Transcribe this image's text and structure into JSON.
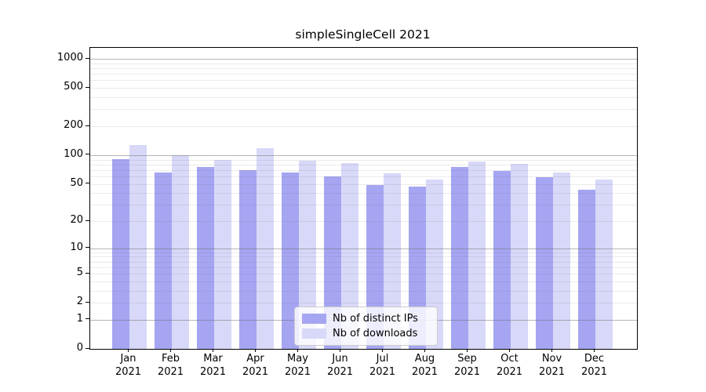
{
  "chart_data": {
    "type": "bar",
    "title": "simpleSingleCell 2021",
    "categories": [
      {
        "month": "Jan",
        "year": "2021"
      },
      {
        "month": "Feb",
        "year": "2021"
      },
      {
        "month": "Mar",
        "year": "2021"
      },
      {
        "month": "Apr",
        "year": "2021"
      },
      {
        "month": "May",
        "year": "2021"
      },
      {
        "month": "Jun",
        "year": "2021"
      },
      {
        "month": "Jul",
        "year": "2021"
      },
      {
        "month": "Aug",
        "year": "2021"
      },
      {
        "month": "Sep",
        "year": "2021"
      },
      {
        "month": "Oct",
        "year": "2021"
      },
      {
        "month": "Nov",
        "year": "2021"
      },
      {
        "month": "Dec",
        "year": "2021"
      }
    ],
    "series": [
      {
        "key": "distinct-ips",
        "name": "Nb of distinct IPs",
        "color": "#a5a5f2",
        "values": [
          91,
          66,
          75,
          70,
          66,
          60,
          49,
          47,
          75,
          68,
          59,
          43
        ]
      },
      {
        "key": "downloads",
        "name": "Nb of downloads",
        "color": "#d8d8f8",
        "values": [
          128,
          100,
          89,
          118,
          87,
          82,
          65,
          55,
          86,
          81,
          66,
          55
        ]
      }
    ],
    "yscale": "log10(value+1)",
    "ylim": [
      0,
      1300
    ],
    "yticks": [
      0,
      1,
      2,
      5,
      10,
      20,
      50,
      100,
      200,
      500,
      1000
    ],
    "grid_major": [
      1,
      10,
      100,
      1000
    ],
    "grid_minor": [
      2,
      3,
      4,
      5,
      6,
      7,
      8,
      9,
      20,
      30,
      40,
      50,
      60,
      70,
      80,
      90,
      200,
      300,
      400,
      500,
      600,
      700,
      800,
      900
    ],
    "xlabel": "",
    "ylabel": "",
    "legend_position": "lower center",
    "grid": "on"
  }
}
